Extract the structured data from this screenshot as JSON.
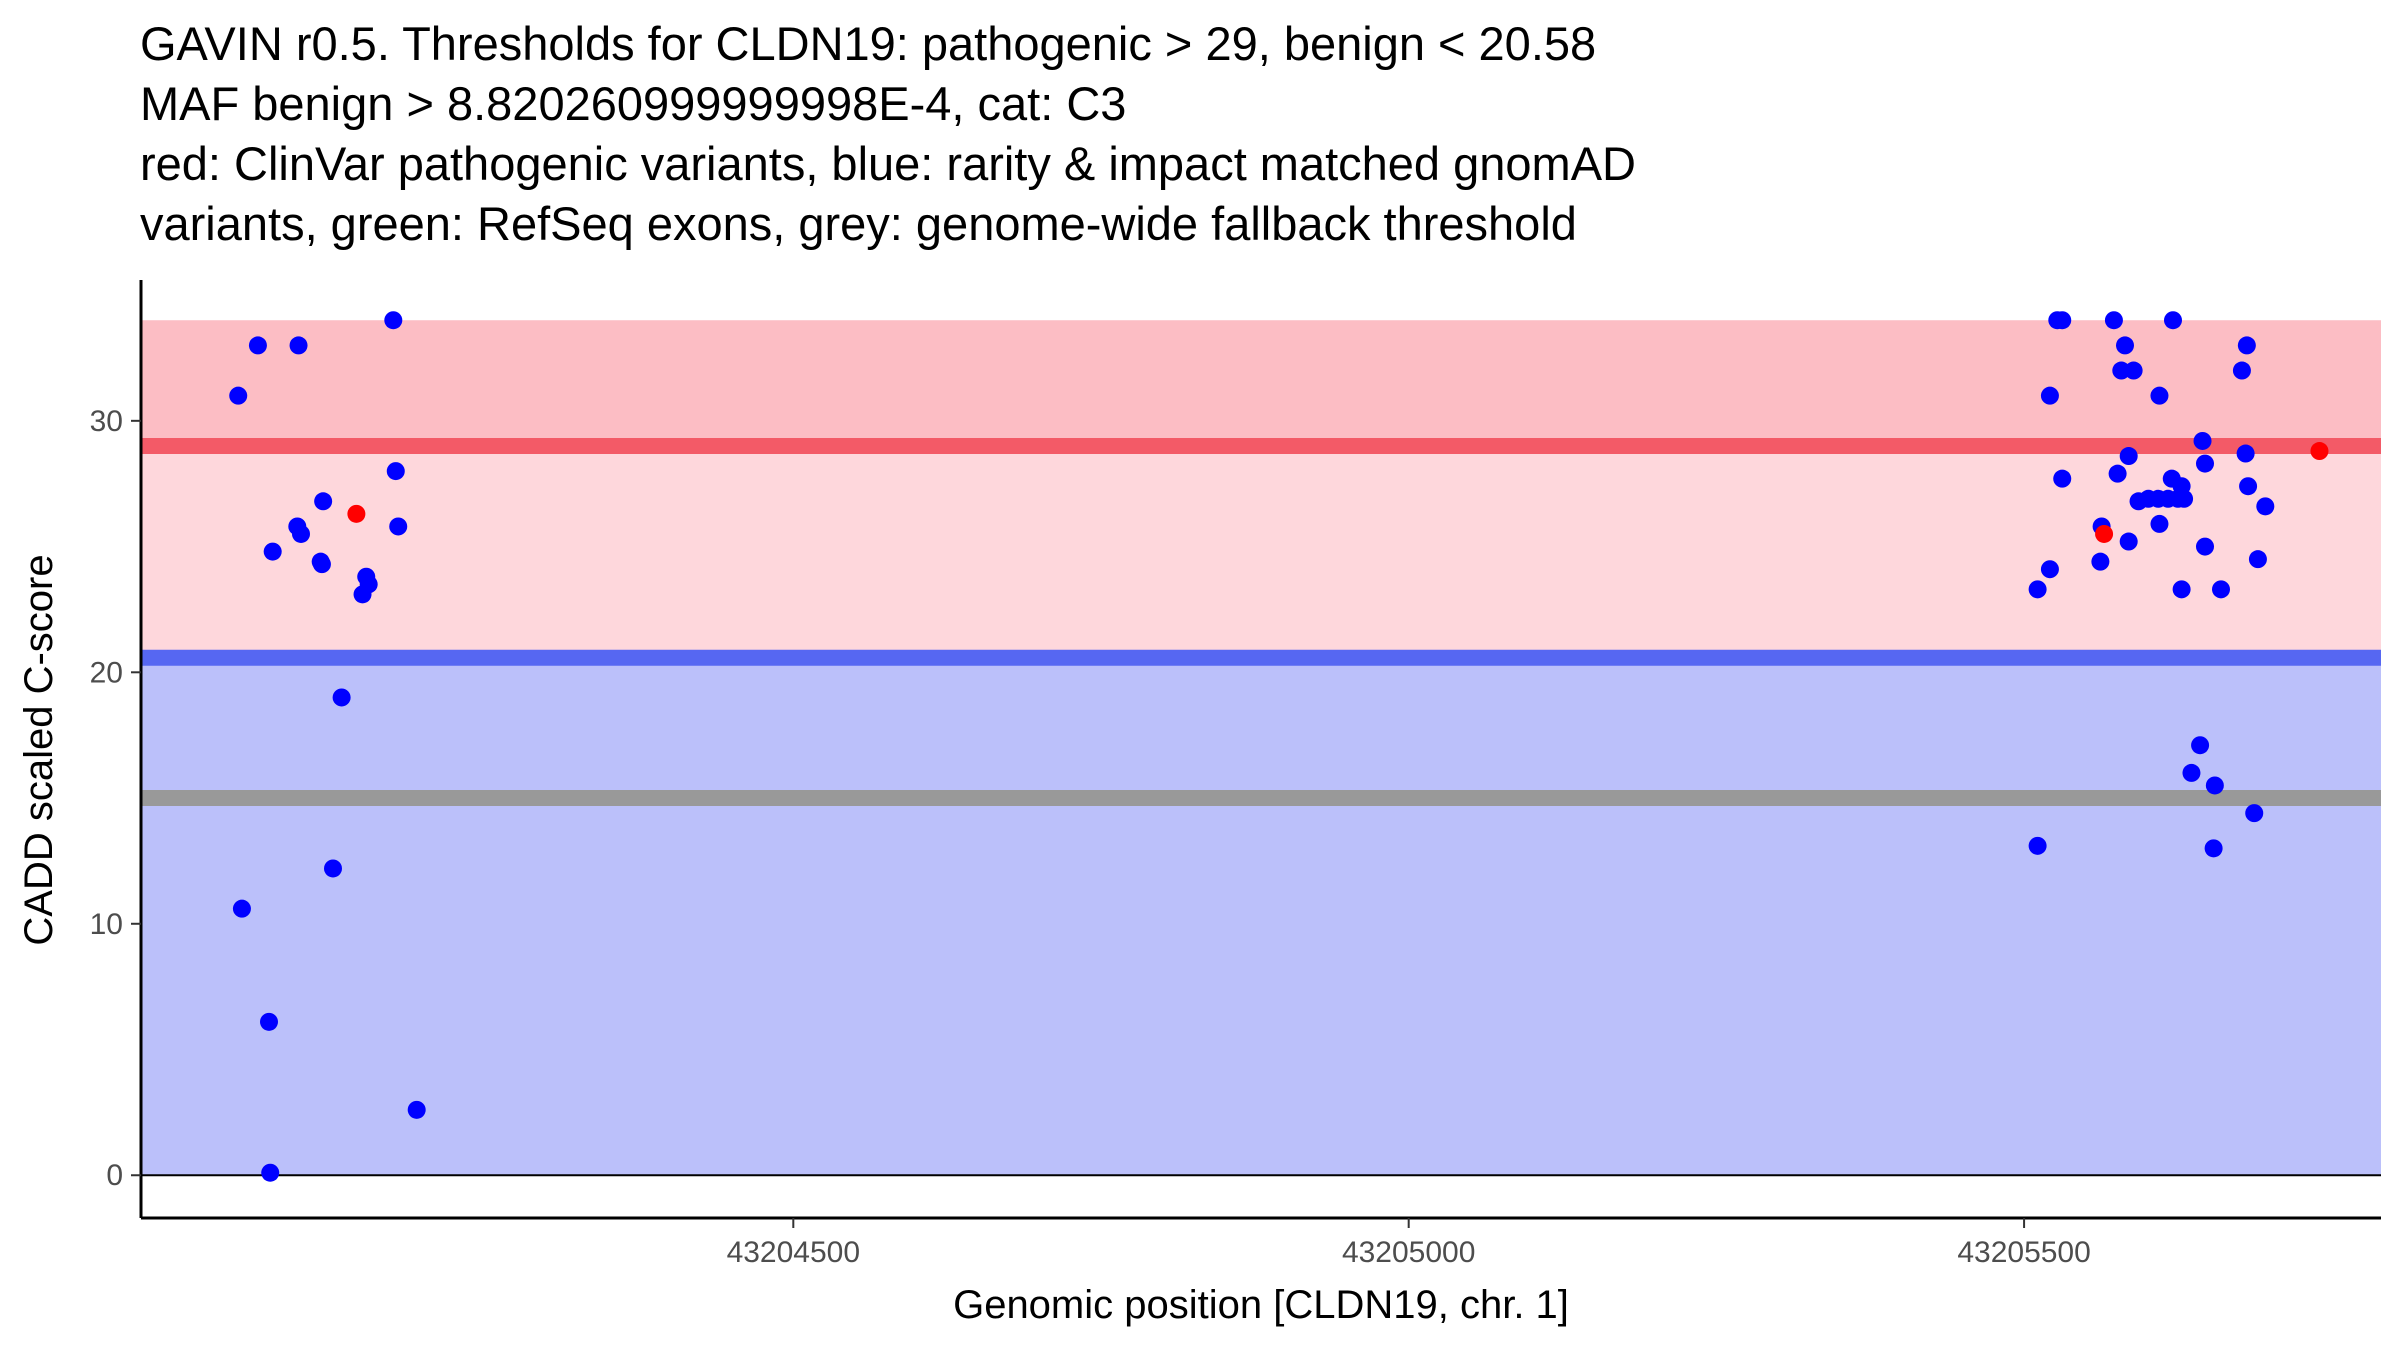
{
  "chart_data": {
    "type": "scatter",
    "title_lines": [
      "GAVIN r0.5. Thresholds for CLDN19: pathogenic > 29, benign < 20.58",
      "MAF benign > 8.820260999999998E-4, cat: C3",
      "red: ClinVar pathogenic variants, blue: rarity & impact matched gnomAD",
      "variants, green: RefSeq exons, grey: genome-wide fallback threshold"
    ],
    "xlabel": "Genomic position [CLDN19, chr. 1]",
    "ylabel": "CADD scaled C-score",
    "xlim": [
      43203970,
      43205790
    ],
    "ylim": [
      -1.7,
      35.6
    ],
    "x_ticks": [
      43204500,
      43205000,
      43205500
    ],
    "x_tick_labels": [
      "43204500",
      "43205000",
      "43205500"
    ],
    "y_ticks": [
      0,
      10,
      20,
      30
    ],
    "y_tick_labels": [
      "0",
      "10",
      "20",
      "30"
    ],
    "regions": [
      {
        "name": "pathogenic-zone-upper",
        "y0": 29,
        "y1": 34,
        "color": "#fcbdc4"
      },
      {
        "name": "pathogenic-zone-lower",
        "y0": 20.58,
        "y1": 29,
        "color": "#fed7dc"
      },
      {
        "name": "benign-zone",
        "y0": 0,
        "y1": 20.58,
        "color": "#bbc0fa"
      }
    ],
    "threshold_lines": [
      {
        "name": "pathogenic-threshold-line",
        "y": 29,
        "color": "#f35a67"
      },
      {
        "name": "benign-threshold-line",
        "y": 20.58,
        "color": "#5667f2"
      },
      {
        "name": "fallback-threshold-line",
        "y": 15,
        "color": "#999999"
      }
    ],
    "colors": {
      "benign_points": "#0000ff",
      "pathogenic_points": "#ff0000",
      "axis": "#000000"
    },
    "series": [
      {
        "name": "ClinVar pathogenic variants",
        "color": "#ff0000",
        "points": [
          {
            "x": 43204145,
            "y": 26.3
          },
          {
            "x": 43205565,
            "y": 25.5
          },
          {
            "x": 43205740,
            "y": 28.8
          }
        ]
      },
      {
        "name": "rarity & impact matched gnomAD variants",
        "color": "#0000ff",
        "points": [
          {
            "x": 43204049,
            "y": 31.0
          },
          {
            "x": 43204065,
            "y": 33.0
          },
          {
            "x": 43204098,
            "y": 33.0
          },
          {
            "x": 43204175,
            "y": 34.0
          },
          {
            "x": 43204177,
            "y": 28.0
          },
          {
            "x": 43204179,
            "y": 25.8
          },
          {
            "x": 43204077,
            "y": 24.8
          },
          {
            "x": 43204097,
            "y": 25.8
          },
          {
            "x": 43204100,
            "y": 25.5
          },
          {
            "x": 43204118,
            "y": 26.8
          },
          {
            "x": 43204116,
            "y": 24.4
          },
          {
            "x": 43204117,
            "y": 24.3
          },
          {
            "x": 43204153,
            "y": 23.8
          },
          {
            "x": 43204155,
            "y": 23.5
          },
          {
            "x": 43204150,
            "y": 23.1
          },
          {
            "x": 43204133,
            "y": 19.0
          },
          {
            "x": 43204126,
            "y": 12.2
          },
          {
            "x": 43204052,
            "y": 10.6
          },
          {
            "x": 43204074,
            "y": 6.1
          },
          {
            "x": 43204075,
            "y": 0.1
          },
          {
            "x": 43204194,
            "y": 2.6
          },
          {
            "x": 43205527,
            "y": 34.0
          },
          {
            "x": 43205531,
            "y": 34.0
          },
          {
            "x": 43205573,
            "y": 34.0
          },
          {
            "x": 43205621,
            "y": 34.0
          },
          {
            "x": 43205582,
            "y": 33.0
          },
          {
            "x": 43205681,
            "y": 33.0
          },
          {
            "x": 43205579,
            "y": 32.0
          },
          {
            "x": 43205589,
            "y": 32.0
          },
          {
            "x": 43205677,
            "y": 32.0
          },
          {
            "x": 43205521,
            "y": 31.0
          },
          {
            "x": 43205610,
            "y": 31.0
          },
          {
            "x": 43205645,
            "y": 29.2
          },
          {
            "x": 43205585,
            "y": 28.6
          },
          {
            "x": 43205680,
            "y": 28.7
          },
          {
            "x": 43205647,
            "y": 28.3
          },
          {
            "x": 43205576,
            "y": 27.9
          },
          {
            "x": 43205531,
            "y": 27.7
          },
          {
            "x": 43205620,
            "y": 27.7
          },
          {
            "x": 43205628,
            "y": 27.4
          },
          {
            "x": 43205682,
            "y": 27.4
          },
          {
            "x": 43205593,
            "y": 26.8
          },
          {
            "x": 43205601,
            "y": 26.9
          },
          {
            "x": 43205609,
            "y": 26.9
          },
          {
            "x": 43205617,
            "y": 26.9
          },
          {
            "x": 43205625,
            "y": 26.9
          },
          {
            "x": 43205630,
            "y": 26.9
          },
          {
            "x": 43205696,
            "y": 26.6
          },
          {
            "x": 43205610,
            "y": 25.9
          },
          {
            "x": 43205563,
            "y": 25.8
          },
          {
            "x": 43205585,
            "y": 25.2
          },
          {
            "x": 43205647,
            "y": 25.0
          },
          {
            "x": 43205562,
            "y": 24.4
          },
          {
            "x": 43205690,
            "y": 24.5
          },
          {
            "x": 43205521,
            "y": 24.1
          },
          {
            "x": 43205511,
            "y": 23.3
          },
          {
            "x": 43205628,
            "y": 23.3
          },
          {
            "x": 43205660,
            "y": 23.3
          },
          {
            "x": 43205643,
            "y": 17.1
          },
          {
            "x": 43205636,
            "y": 16.0
          },
          {
            "x": 43205655,
            "y": 15.5
          },
          {
            "x": 43205687,
            "y": 14.4
          },
          {
            "x": 43205511,
            "y": 13.1
          },
          {
            "x": 43205654,
            "y": 13.0
          }
        ]
      }
    ]
  }
}
